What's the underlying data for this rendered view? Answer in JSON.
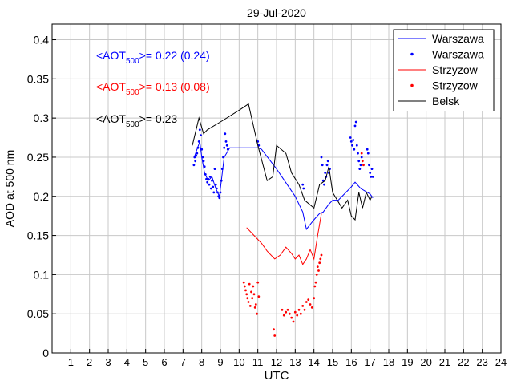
{
  "chart_data": {
    "type": "line",
    "title": "29-Jul-2020",
    "xlabel": "UTC",
    "ylabel": "AOD at 500 nm",
    "xlim": [
      0,
      24
    ],
    "ylim": [
      0,
      0.42
    ],
    "x_ticks": [
      "1",
      "2",
      "3",
      "4",
      "5",
      "6",
      "7",
      "8",
      "9",
      "10",
      "11",
      "12",
      "13",
      "14",
      "15",
      "16",
      "17",
      "18",
      "19",
      "20",
      "21",
      "22",
      "23",
      "24"
    ],
    "y_ticks": [
      "0",
      "0.05",
      "0.1",
      "0.15",
      "0.2",
      "0.25",
      "0.3",
      "0.35",
      "0.4"
    ],
    "grid": true,
    "legend_position": "top-right",
    "annotations": [
      {
        "pre": "<AOT",
        "sub": "500",
        "post": ">= 0.22 (0.24)",
        "color": "#0000ff"
      },
      {
        "pre": "<AOT",
        "sub": "500",
        "post": ">= 0.13 (0.08)",
        "color": "#ff0000"
      },
      {
        "pre": "<AOT",
        "sub": "500",
        "post": ">= 0.23",
        "color": "#000000"
      }
    ],
    "series": [
      {
        "name": "Warszawa",
        "style": "line",
        "color": "#0000ff",
        "points": [
          [
            7.6,
            0.25
          ],
          [
            7.75,
            0.26
          ],
          [
            7.9,
            0.27
          ],
          [
            8.0,
            0.25
          ],
          [
            8.15,
            0.23
          ],
          [
            8.35,
            0.22
          ],
          [
            8.55,
            0.225
          ],
          [
            8.75,
            0.21
          ],
          [
            8.95,
            0.2
          ],
          [
            9.2,
            0.25
          ],
          [
            9.5,
            0.262
          ],
          [
            10.0,
            0.262
          ],
          [
            10.5,
            0.262
          ],
          [
            11.0,
            0.262
          ],
          [
            11.2,
            0.26
          ],
          [
            12.0,
            0.235
          ],
          [
            13.0,
            0.2
          ],
          [
            13.4,
            0.18
          ],
          [
            13.6,
            0.158
          ],
          [
            14.0,
            0.17
          ],
          [
            14.3,
            0.178
          ],
          [
            14.5,
            0.18
          ],
          [
            14.8,
            0.19
          ],
          [
            15.0,
            0.195
          ],
          [
            15.3,
            0.195
          ],
          [
            16.0,
            0.212
          ],
          [
            16.2,
            0.218
          ],
          [
            16.5,
            0.21
          ],
          [
            17.0,
            0.203
          ],
          [
            17.15,
            0.198
          ]
        ]
      },
      {
        "name": "Warszawa",
        "style": "points",
        "color": "#0000ff",
        "points": [
          [
            7.58,
            0.24
          ],
          [
            7.62,
            0.25
          ],
          [
            7.66,
            0.245
          ],
          [
            7.7,
            0.252
          ],
          [
            7.75,
            0.255
          ],
          [
            7.8,
            0.262
          ],
          [
            7.85,
            0.27
          ],
          [
            7.9,
            0.285
          ],
          [
            7.95,
            0.278
          ],
          [
            8.0,
            0.26
          ],
          [
            8.05,
            0.25
          ],
          [
            8.1,
            0.245
          ],
          [
            8.15,
            0.238
          ],
          [
            8.2,
            0.228
          ],
          [
            8.25,
            0.222
          ],
          [
            8.3,
            0.218
          ],
          [
            8.35,
            0.222
          ],
          [
            8.4,
            0.215
          ],
          [
            8.45,
            0.225
          ],
          [
            8.5,
            0.21
          ],
          [
            8.55,
            0.22
          ],
          [
            8.6,
            0.212
          ],
          [
            8.65,
            0.205
          ],
          [
            8.7,
            0.235
          ],
          [
            8.75,
            0.215
          ],
          [
            8.8,
            0.21
          ],
          [
            8.85,
            0.205
          ],
          [
            8.9,
            0.2
          ],
          [
            8.95,
            0.198
          ],
          [
            9.0,
            0.205
          ],
          [
            9.05,
            0.22
          ],
          [
            9.1,
            0.235
          ],
          [
            9.15,
            0.25
          ],
          [
            9.2,
            0.262
          ],
          [
            9.25,
            0.28
          ],
          [
            9.3,
            0.27
          ],
          [
            9.35,
            0.265
          ],
          [
            9.4,
            0.26
          ],
          [
            11.0,
            0.27
          ],
          [
            11.05,
            0.265
          ],
          [
            13.4,
            0.215
          ],
          [
            13.45,
            0.21
          ],
          [
            14.4,
            0.25
          ],
          [
            14.45,
            0.24
          ],
          [
            14.5,
            0.22
          ],
          [
            14.55,
            0.215
          ],
          [
            14.6,
            0.23
          ],
          [
            14.65,
            0.225
          ],
          [
            14.7,
            0.24
          ],
          [
            14.75,
            0.245
          ],
          [
            14.8,
            0.23
          ],
          [
            14.85,
            0.235
          ],
          [
            15.95,
            0.275
          ],
          [
            16.0,
            0.27
          ],
          [
            16.05,
            0.265
          ],
          [
            16.1,
            0.272
          ],
          [
            16.15,
            0.26
          ],
          [
            16.2,
            0.29
          ],
          [
            16.25,
            0.295
          ],
          [
            16.3,
            0.265
          ],
          [
            16.35,
            0.255
          ],
          [
            16.4,
            0.245
          ],
          [
            16.45,
            0.235
          ],
          [
            16.5,
            0.24
          ],
          [
            16.55,
            0.25
          ],
          [
            16.85,
            0.26
          ],
          [
            16.9,
            0.255
          ],
          [
            16.95,
            0.24
          ],
          [
            17.0,
            0.23
          ],
          [
            17.05,
            0.225
          ],
          [
            17.1,
            0.235
          ],
          [
            17.15,
            0.225
          ]
        ]
      },
      {
        "name": "Strzyzow",
        "style": "line",
        "color": "#ff0000",
        "points": [
          [
            10.4,
            0.16
          ],
          [
            10.8,
            0.15
          ],
          [
            11.2,
            0.14
          ],
          [
            11.5,
            0.13
          ],
          [
            11.9,
            0.12
          ],
          [
            12.2,
            0.125
          ],
          [
            12.5,
            0.135
          ],
          [
            12.8,
            0.127
          ],
          [
            13.0,
            0.12
          ],
          [
            13.2,
            0.125
          ],
          [
            13.4,
            0.113
          ],
          [
            13.6,
            0.12
          ],
          [
            13.8,
            0.132
          ],
          [
            14.0,
            0.12
          ],
          [
            14.2,
            0.15
          ],
          [
            14.4,
            0.178
          ]
        ]
      },
      {
        "name": "Strzyzow",
        "style": "points",
        "color": "#ff0000",
        "points": [
          [
            10.25,
            0.09
          ],
          [
            10.3,
            0.085
          ],
          [
            10.35,
            0.08
          ],
          [
            10.4,
            0.075
          ],
          [
            10.45,
            0.07
          ],
          [
            10.5,
            0.065
          ],
          [
            10.55,
            0.088
          ],
          [
            10.6,
            0.06
          ],
          [
            10.65,
            0.078
          ],
          [
            10.7,
            0.07
          ],
          [
            10.75,
            0.085
          ],
          [
            10.8,
            0.075
          ],
          [
            10.85,
            0.058
          ],
          [
            10.9,
            0.062
          ],
          [
            10.95,
            0.05
          ],
          [
            11.0,
            0.09
          ],
          [
            11.05,
            0.072
          ],
          [
            11.85,
            0.03
          ],
          [
            11.9,
            0.022
          ],
          [
            12.3,
            0.055
          ],
          [
            12.4,
            0.048
          ],
          [
            12.5,
            0.052
          ],
          [
            12.6,
            0.055
          ],
          [
            12.7,
            0.05
          ],
          [
            12.8,
            0.045
          ],
          [
            12.9,
            0.04
          ],
          [
            13.0,
            0.052
          ],
          [
            13.1,
            0.048
          ],
          [
            13.2,
            0.055
          ],
          [
            13.3,
            0.05
          ],
          [
            13.4,
            0.06
          ],
          [
            13.5,
            0.055
          ],
          [
            13.6,
            0.065
          ],
          [
            13.7,
            0.068
          ],
          [
            13.8,
            0.062
          ],
          [
            13.9,
            0.058
          ],
          [
            14.0,
            0.07
          ],
          [
            14.05,
            0.085
          ],
          [
            14.1,
            0.09
          ],
          [
            14.15,
            0.1
          ],
          [
            14.2,
            0.11
          ],
          [
            14.25,
            0.105
          ],
          [
            14.3,
            0.115
          ],
          [
            14.35,
            0.12
          ],
          [
            14.4,
            0.125
          ],
          [
            16.55,
            0.255
          ],
          [
            16.6,
            0.245
          ],
          [
            16.65,
            0.24
          ]
        ]
      },
      {
        "name": "Belsk",
        "style": "line",
        "color": "#000000",
        "points": [
          [
            7.5,
            0.265
          ],
          [
            7.85,
            0.3
          ],
          [
            8.1,
            0.28
          ],
          [
            8.3,
            0.285
          ],
          [
            9.0,
            0.295
          ],
          [
            10.0,
            0.31
          ],
          [
            10.5,
            0.318
          ],
          [
            11.0,
            0.265
          ],
          [
            11.5,
            0.22
          ],
          [
            11.8,
            0.225
          ],
          [
            12.0,
            0.265
          ],
          [
            12.5,
            0.255
          ],
          [
            12.8,
            0.23
          ],
          [
            13.2,
            0.215
          ],
          [
            13.5,
            0.195
          ],
          [
            14.0,
            0.185
          ],
          [
            14.3,
            0.215
          ],
          [
            14.6,
            0.22
          ],
          [
            14.8,
            0.238
          ],
          [
            15.0,
            0.205
          ],
          [
            15.5,
            0.185
          ],
          [
            15.8,
            0.195
          ],
          [
            16.0,
            0.175
          ],
          [
            16.2,
            0.17
          ],
          [
            16.4,
            0.205
          ],
          [
            16.6,
            0.185
          ],
          [
            16.8,
            0.205
          ],
          [
            17.0,
            0.195
          ],
          [
            17.1,
            0.2
          ]
        ]
      },
      {
        "name": "",
        "style": "line",
        "color": "#000000",
        "points": [
          [
            16.9,
            0.195
          ]
        ]
      }
    ],
    "legend": [
      {
        "name": "Warszawa",
        "style": "line",
        "color": "#0000ff"
      },
      {
        "name": "Warszawa",
        "style": "points",
        "color": "#0000ff"
      },
      {
        "name": "Strzyzow",
        "style": "line",
        "color": "#ff0000"
      },
      {
        "name": "Strzyzow",
        "style": "points",
        "color": "#ff0000"
      },
      {
        "name": "Belsk",
        "style": "line",
        "color": "#000000"
      }
    ]
  }
}
